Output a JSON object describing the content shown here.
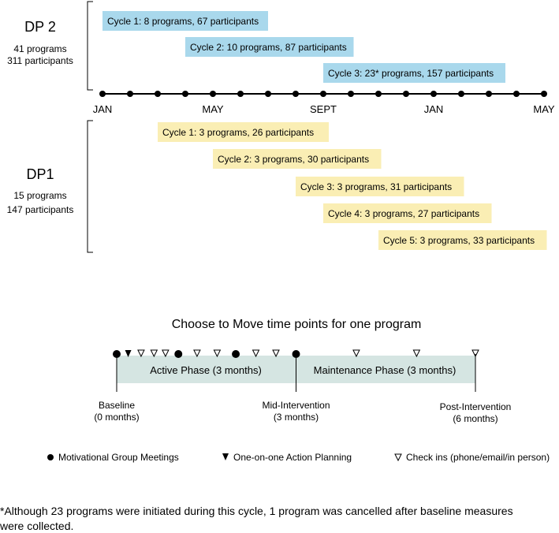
{
  "dp2": {
    "title": "DP 2",
    "programs": "41 programs",
    "participants": "311 participants",
    "bar_color": "#a9d8ec",
    "cycles": [
      {
        "label": "Cycle 1: 8 programs, 67 participants",
        "start_month": 0,
        "end_month": 6
      },
      {
        "label": "Cycle 2: 10 programs, 87 participants",
        "start_month": 3,
        "end_month": 9.1
      },
      {
        "label": "Cycle 3: 23* programs, 157 participants",
        "start_month": 8,
        "end_month": 14.6
      }
    ]
  },
  "timeline": {
    "ticks": [
      "JAN",
      "MAY",
      "SEPT",
      "JAN",
      "MAY"
    ],
    "tick_months": [
      0,
      4,
      8,
      12,
      16
    ],
    "months_total": 16
  },
  "dp1": {
    "title": "DP1",
    "programs": "15 programs",
    "participants": "147 participants",
    "bar_color": "#faeeb4",
    "cycles": [
      {
        "label": "Cycle 1: 3 programs, 26 participants",
        "start_month": 2,
        "end_month": 8.2
      },
      {
        "label": "Cycle 2: 3 programs, 30 participants",
        "start_month": 4,
        "end_month": 10.1
      },
      {
        "label": "Cycle 3: 3 programs, 31 participants",
        "start_month": 7,
        "end_month": 13.1
      },
      {
        "label": "Cycle 4: 3 programs, 27 participants",
        "start_month": 8,
        "end_month": 14.1
      },
      {
        "label": "Cycle 5: 3 programs, 33 participants",
        "start_month": 10,
        "end_month": 16.1
      }
    ]
  },
  "ctm": {
    "title": "Choose to Move time points for one program",
    "bar_color": "#d5e5e2",
    "active_label": "Active Phase (3 months)",
    "maintenance_label": "Maintenance Phase (3 months)",
    "markers": [
      {
        "type": "meeting",
        "week": 0
      },
      {
        "type": "planning",
        "week": 0.8
      },
      {
        "type": "checkin",
        "week": 1.7
      },
      {
        "type": "checkin",
        "week": 2.6
      },
      {
        "type": "checkin",
        "week": 3.4
      },
      {
        "type": "meeting",
        "week": 4.3
      },
      {
        "type": "checkin",
        "week": 5.6
      },
      {
        "type": "checkin",
        "week": 7
      },
      {
        "type": "meeting",
        "week": 8.3
      },
      {
        "type": "checkin",
        "week": 9.7
      },
      {
        "type": "checkin",
        "week": 11.1
      },
      {
        "type": "meeting",
        "week": 12.5
      },
      {
        "type": "checkin",
        "week": 16.7
      },
      {
        "type": "checkin",
        "week": 20.9
      },
      {
        "type": "checkin",
        "week": 25
      }
    ],
    "milestones": [
      {
        "name": "Baseline",
        "detail": "(0 months)",
        "week": 0
      },
      {
        "name": "Mid-Intervention",
        "detail": "(3 months)",
        "week": 12.5
      },
      {
        "name": "Post-Intervention",
        "detail": "(6 months)",
        "week": 25
      }
    ],
    "legend": {
      "meeting": "Motivational Group Meetings",
      "planning": "One-on-one Action Planning",
      "checkin": "Check ins (phone/email/in person)"
    }
  },
  "footnote": {
    "line1": "*Although 23 programs were initiated during this cycle, 1 program was cancelled after baseline measures",
    "line2": "were collected."
  }
}
